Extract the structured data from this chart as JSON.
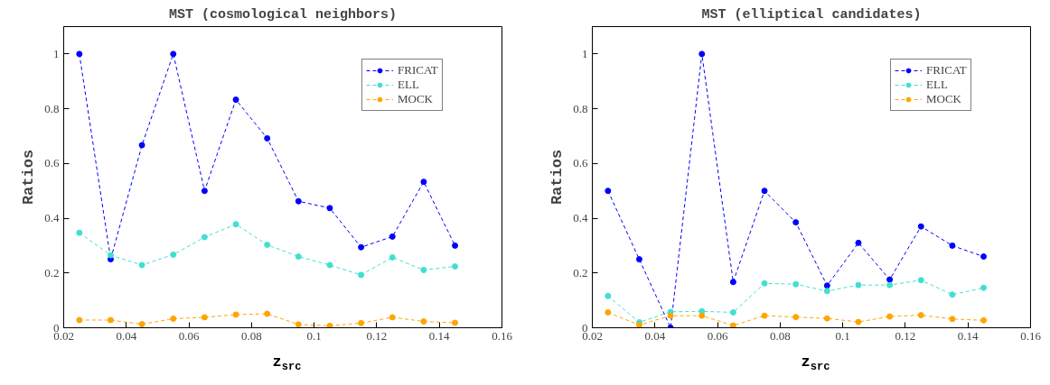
{
  "chart_data": [
    {
      "type": "line",
      "title": "MST (cosmological neighbors)",
      "xlabel": "z$_{src}$",
      "ylabel": "Ratios",
      "x": [
        0.025,
        0.035,
        0.045,
        0.055,
        0.065,
        0.075,
        0.085,
        0.095,
        0.105,
        0.115,
        0.125,
        0.135,
        0.145
      ],
      "series": [
        {
          "name": "FRICAT",
          "color": "#0000ff",
          "values": [
            1,
            0.25,
            0.667,
            1,
            0.5,
            0.833,
            0.692,
            0.462,
            0.437,
            0.294,
            0.333,
            0.533,
            0.3
          ]
        },
        {
          "name": "ELL",
          "color": "#40e0d0",
          "values": [
            0.347,
            0.265,
            0.229,
            0.267,
            0.331,
            0.378,
            0.303,
            0.26,
            0.229,
            0.193,
            0.257,
            0.211,
            0.224
          ]
        },
        {
          "name": "MOCK",
          "color": "#ffa500",
          "values": [
            0.028,
            0.028,
            0.013,
            0.033,
            0.038,
            0.048,
            0.051,
            0.012,
            0.007,
            0.017,
            0.038,
            0.023,
            0.018
          ]
        }
      ],
      "xlim": [
        0.02,
        0.16
      ],
      "xticks": [
        0.02,
        0.04,
        0.06,
        0.08,
        0.1,
        0.12,
        0.14,
        0.16
      ],
      "ylim": [
        0,
        1.1
      ],
      "yticks": [
        0,
        0.2,
        0.4,
        0.6,
        0.8,
        1
      ],
      "legend": "top right",
      "marker": "circle",
      "line_style": "dashed",
      "grid": false
    },
    {
      "type": "line",
      "title": "MST (elliptical candidates)",
      "xlabel": "z$_{src}$",
      "ylabel": "Ratios",
      "x": [
        0.025,
        0.035,
        0.045,
        0.055,
        0.065,
        0.075,
        0.085,
        0.095,
        0.105,
        0.115,
        0.125,
        0.135,
        0.145
      ],
      "series": [
        {
          "name": "FRICAT",
          "color": "#0000ff",
          "values": [
            0.5,
            0.25,
            0,
            1,
            0.167,
            0.5,
            0.385,
            0.154,
            0.31,
            0.176,
            0.37,
            0.3,
            0.26
          ]
        },
        {
          "name": "ELL",
          "color": "#40e0d0",
          "values": [
            0.116,
            0.02,
            0.058,
            0.06,
            0.056,
            0.162,
            0.159,
            0.134,
            0.156,
            0.156,
            0.174,
            0.121,
            0.146
          ]
        },
        {
          "name": "MOCK",
          "color": "#ffa500",
          "values": [
            0.056,
            0.01,
            0.044,
            0.044,
            0.008,
            0.044,
            0.039,
            0.034,
            0.021,
            0.041,
            0.046,
            0.032,
            0.027
          ]
        }
      ],
      "xlim": [
        0.02,
        0.16
      ],
      "xticks": [
        0.02,
        0.04,
        0.06,
        0.08,
        0.1,
        0.12,
        0.14,
        0.16
      ],
      "ylim": [
        0,
        1.1
      ],
      "yticks": [
        0,
        0.2,
        0.4,
        0.6,
        0.8,
        1
      ],
      "legend": "top right",
      "marker": "circle",
      "line_style": "dashed",
      "grid": false
    }
  ]
}
